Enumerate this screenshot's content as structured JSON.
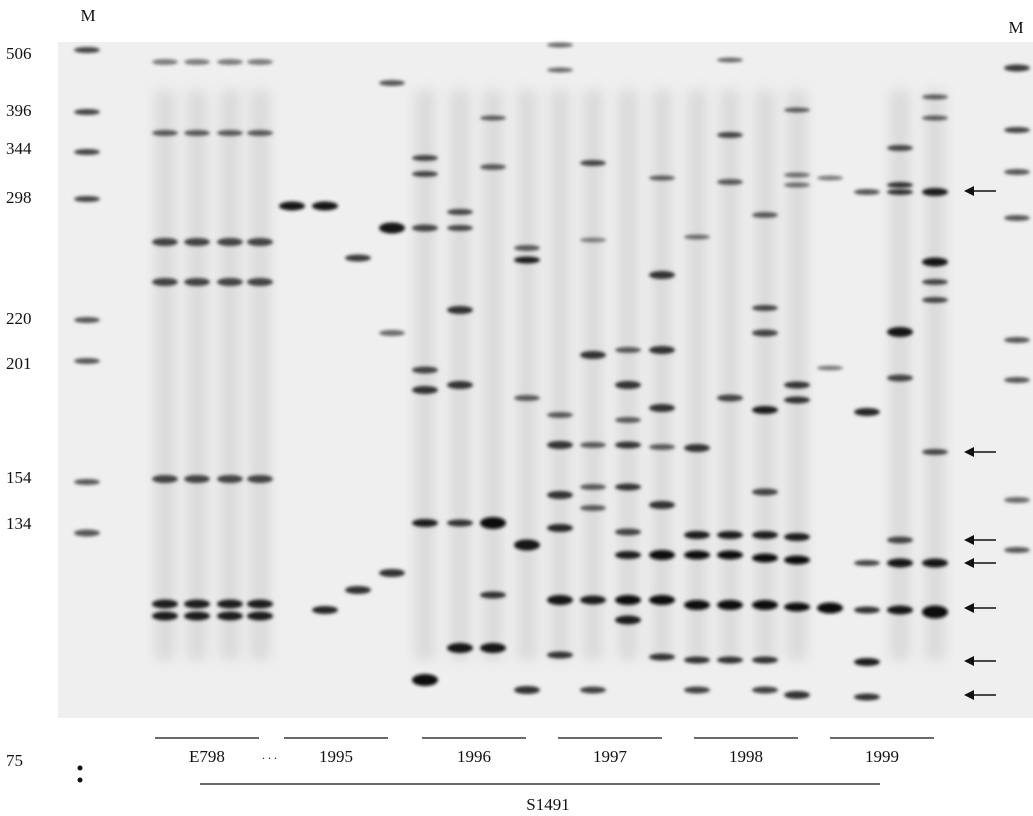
{
  "marker_labels": {
    "left": "M",
    "right": "M"
  },
  "size_labels": [
    506,
    396,
    344,
    298,
    220,
    201,
    154,
    134,
    75
  ],
  "groups": [
    "E798",
    "1995",
    "1996",
    "1997",
    "1998",
    "1999"
  ],
  "strain": "S1491"
}
